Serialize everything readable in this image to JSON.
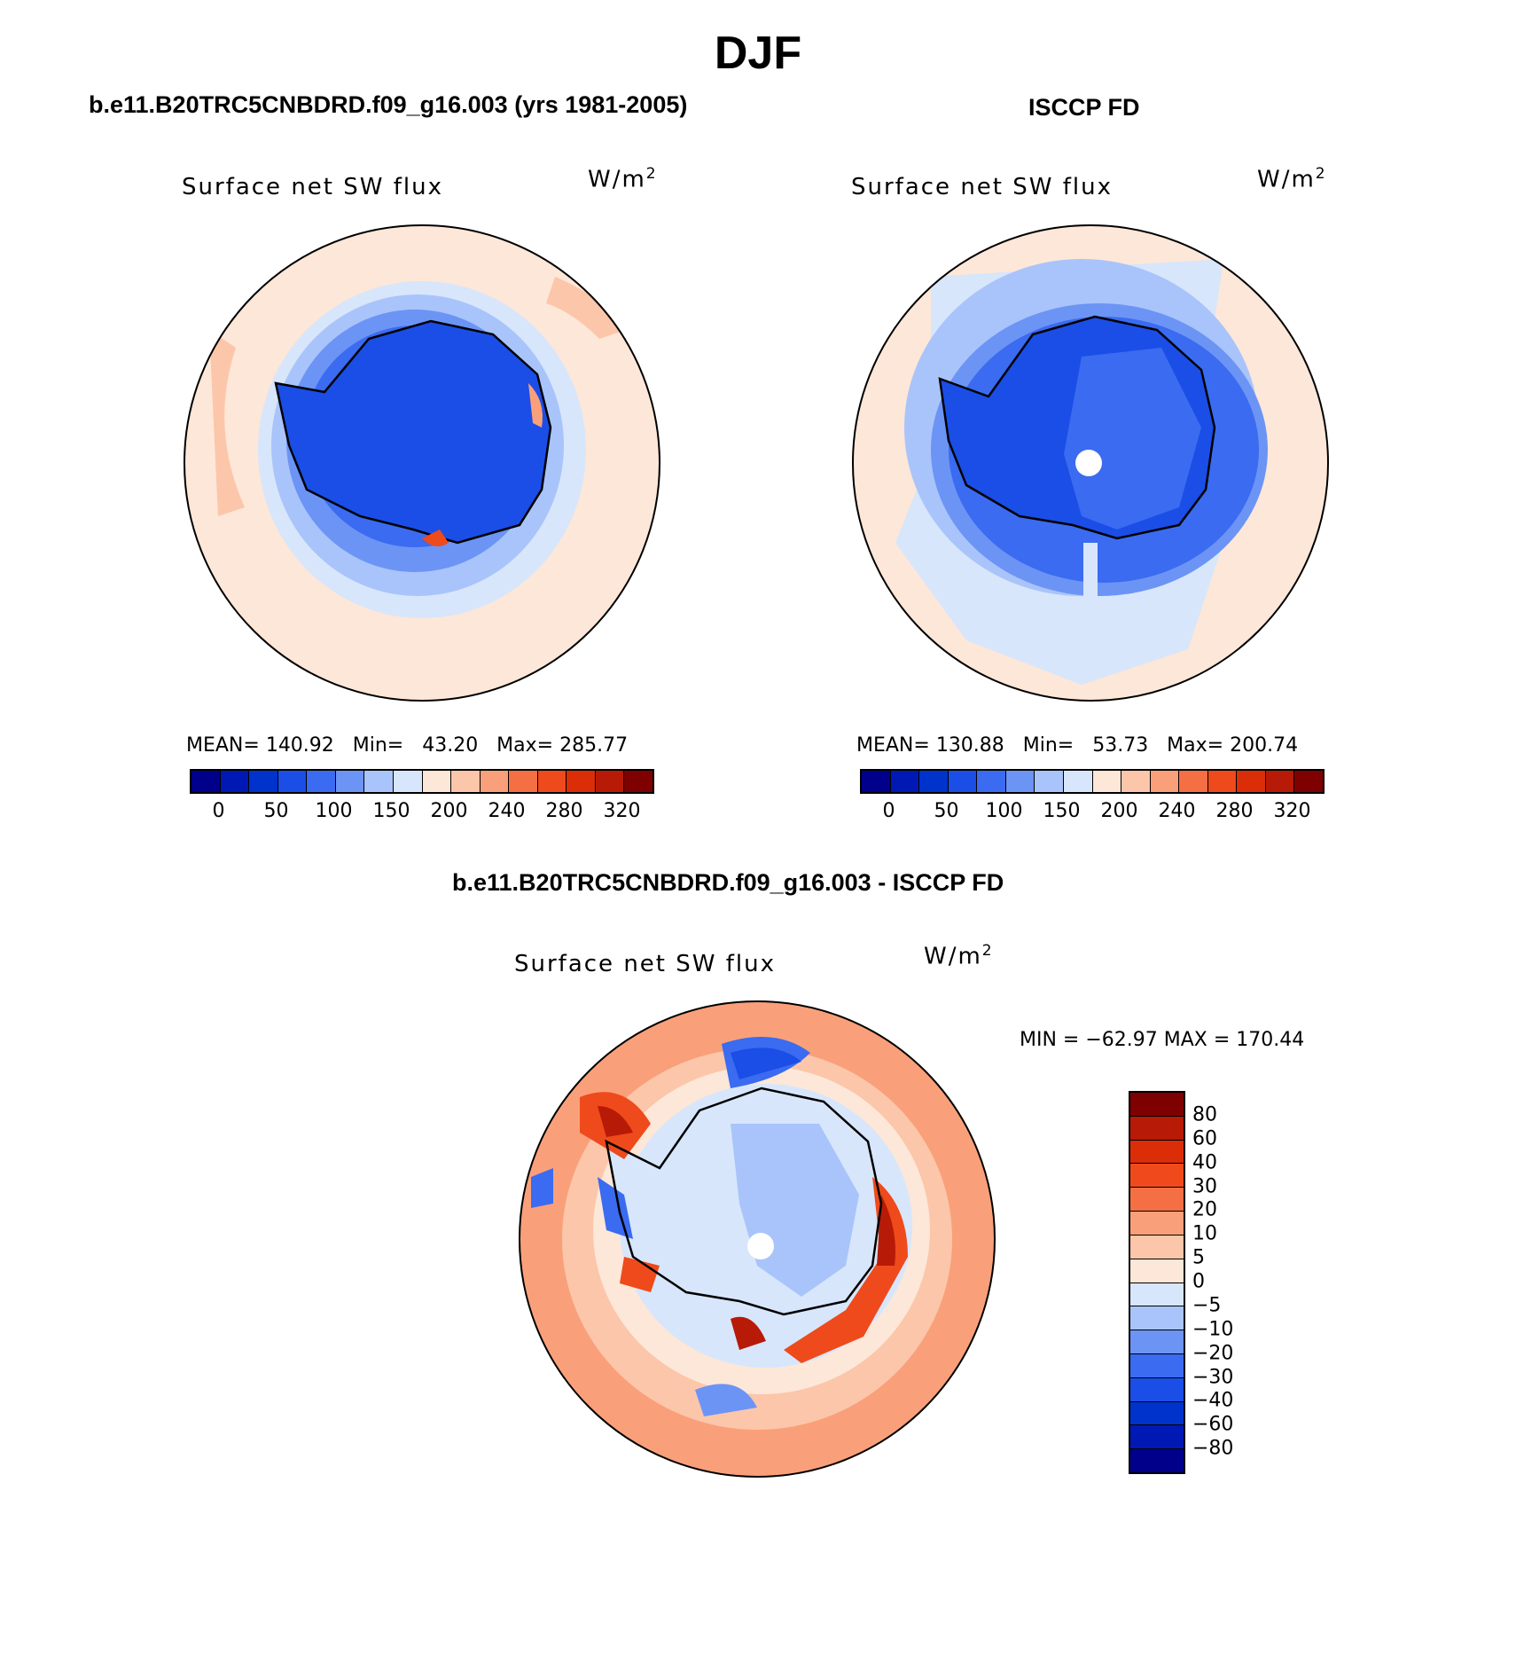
{
  "title": "DJF",
  "panels": {
    "model": {
      "header": "b.e11.B20TRC5CNBDRD.f09_g16.003 (yrs 1981-2005)",
      "label": "Surface net SW flux",
      "units": "W/m",
      "units_sup": "2",
      "stats": "MEAN= 140.92   Min=   43.20   Max= 285.77"
    },
    "obs": {
      "header": "ISCCP FD",
      "label": "Surface net SW flux",
      "units": "W/m",
      "units_sup": "2",
      "stats": "MEAN= 130.88   Min=   53.73   Max= 200.74"
    },
    "diff": {
      "header": "b.e11.B20TRC5CNBDRD.f09_g16.003 - ISCCP FD",
      "label": "Surface net SW flux",
      "units": "W/m",
      "units_sup": "2",
      "stats": "MIN = −62.97 MAX = 170.44"
    }
  },
  "colorbars": {
    "abs": {
      "colors": [
        "#00008b",
        "#0019b4",
        "#0033cc",
        "#1a4ee6",
        "#3a6bf0",
        "#6c94f5",
        "#a9c4fa",
        "#d7e6fb",
        "#fde7d8",
        "#fcc6aa",
        "#f9a07a",
        "#f56f44",
        "#ef4a1b",
        "#db2d08",
        "#b71a06",
        "#7f0000"
      ],
      "labels": [
        "0",
        "50",
        "100",
        "150",
        "200",
        "240",
        "280",
        "320"
      ]
    },
    "diff": {
      "colors": [
        "#7f0000",
        "#b71a06",
        "#db2d08",
        "#f04a1c",
        "#f56f44",
        "#f9a07a",
        "#fcc6aa",
        "#fde7d8",
        "#d7e6fb",
        "#a9c4fa",
        "#6c94f5",
        "#3a6bf0",
        "#1a4ee6",
        "#0033cc",
        "#0019b4",
        "#00008b"
      ],
      "labels": [
        "80",
        "60",
        "40",
        "30",
        "20",
        "10",
        "5",
        "0",
        "−5",
        "−10",
        "−20",
        "−30",
        "−40",
        "−60",
        "−80"
      ]
    }
  }
}
